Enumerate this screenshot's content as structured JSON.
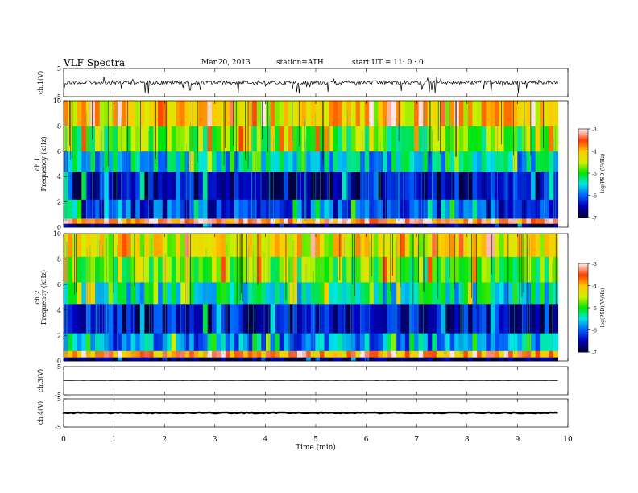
{
  "header": {
    "title": "VLF  Spectra",
    "date": "Mar.20, 2013",
    "station": "station=ATH",
    "start": "start  UT =   11: 0  : 0"
  },
  "chart_data": [
    {
      "type": "line",
      "panel": "ch1-waveform",
      "ylabel": "ch.1(V)",
      "ylim": [
        -5,
        5
      ],
      "yticks": [
        "5",
        "-5"
      ],
      "xlim": [
        0,
        10
      ],
      "x_extent_min": 9.8,
      "series": [
        {
          "values_description_only": false,
          "x": [
            0,
            9.8
          ],
          "y": [
            0,
            0
          ]
        }
      ],
      "color": "#000000"
    },
    {
      "type": "heatmap",
      "panel": "ch1-spectrogram",
      "ylabel": "Frequency  (kHz)",
      "channel_label": "ch.1",
      "ylim": [
        0,
        10
      ],
      "yticks": [
        "0",
        "2",
        "4",
        "6",
        "8",
        "10"
      ],
      "xlim": [
        0,
        10
      ],
      "x_extent_min": 9.8,
      "colorbar": {
        "label": "log(PSD)(V²/Hz)",
        "range": [
          -7,
          -3
        ],
        "ticks": [
          "-3",
          "-4",
          "-5",
          "-6",
          "-7"
        ],
        "colors": [
          "#000080",
          "#0000ff",
          "#00ffff",
          "#00ff00",
          "#ffff00",
          "#ff0000",
          "#ffffff"
        ]
      },
      "bands_khz": [
        {
          "from": 0,
          "to": 0.3,
          "level": -7
        },
        {
          "from": 0.3,
          "to": 0.7,
          "level": -3.5
        },
        {
          "from": 0.7,
          "to": 2.2,
          "level": -6.2
        },
        {
          "from": 2.2,
          "to": 4.4,
          "level": -6.6
        },
        {
          "from": 4.4,
          "to": 6.0,
          "level": -5.6
        },
        {
          "from": 6.0,
          "to": 8.0,
          "level": -4.9
        },
        {
          "from": 8.0,
          "to": 10,
          "level": -4.2
        }
      ]
    },
    {
      "type": "heatmap",
      "panel": "ch2-spectrogram",
      "ylabel": "Frequency  (kHz)",
      "channel_label": "ch.2",
      "ylim": [
        0,
        10
      ],
      "yticks": [
        "0",
        "2",
        "4",
        "6",
        "8",
        "10"
      ],
      "xlim": [
        0,
        10
      ],
      "x_extent_min": 9.8,
      "colorbar": {
        "label": "log(PSD)(V²/Hz)",
        "range": [
          -7,
          -3
        ],
        "ticks": [
          "-3",
          "-4",
          "-5",
          "-6",
          "-7"
        ],
        "colors": [
          "#000080",
          "#0000ff",
          "#00ffff",
          "#00ff00",
          "#ffff00",
          "#ff0000",
          "#ffffff"
        ]
      },
      "bands_khz": [
        {
          "from": 0,
          "to": 0.3,
          "level": -7
        },
        {
          "from": 0.3,
          "to": 0.8,
          "level": -3.8
        },
        {
          "from": 0.8,
          "to": 2.2,
          "level": -5.9
        },
        {
          "from": 2.2,
          "to": 4.5,
          "level": -6.5
        },
        {
          "from": 4.5,
          "to": 6.2,
          "level": -5.4
        },
        {
          "from": 6.2,
          "to": 8.2,
          "level": -4.8
        },
        {
          "from": 8.2,
          "to": 10,
          "level": -4.3
        }
      ]
    },
    {
      "type": "line",
      "panel": "ch3-waveform",
      "ylabel": "ch.3(V)",
      "ylim": [
        -5,
        5
      ],
      "yticks": [
        "5",
        "-5"
      ],
      "xlim": [
        0,
        10
      ],
      "x_extent_min": 9.8,
      "series": [
        {
          "x": [
            0,
            9.8
          ],
          "y": [
            0,
            0
          ]
        }
      ]
    },
    {
      "type": "line",
      "panel": "ch4-waveform",
      "ylabel": "ch.4(V)",
      "ylim": [
        -5,
        5
      ],
      "yticks": [
        "5",
        "-5"
      ],
      "xlim": [
        0,
        10
      ],
      "x_extent_min": 9.8,
      "series": [
        {
          "x": [
            0,
            9.8
          ],
          "y": [
            0,
            0
          ]
        }
      ]
    }
  ],
  "x_axis": {
    "label": "Time  (min)",
    "ticks": [
      "0",
      "1",
      "2",
      "3",
      "4",
      "5",
      "6",
      "7",
      "8",
      "9",
      "10"
    ]
  }
}
